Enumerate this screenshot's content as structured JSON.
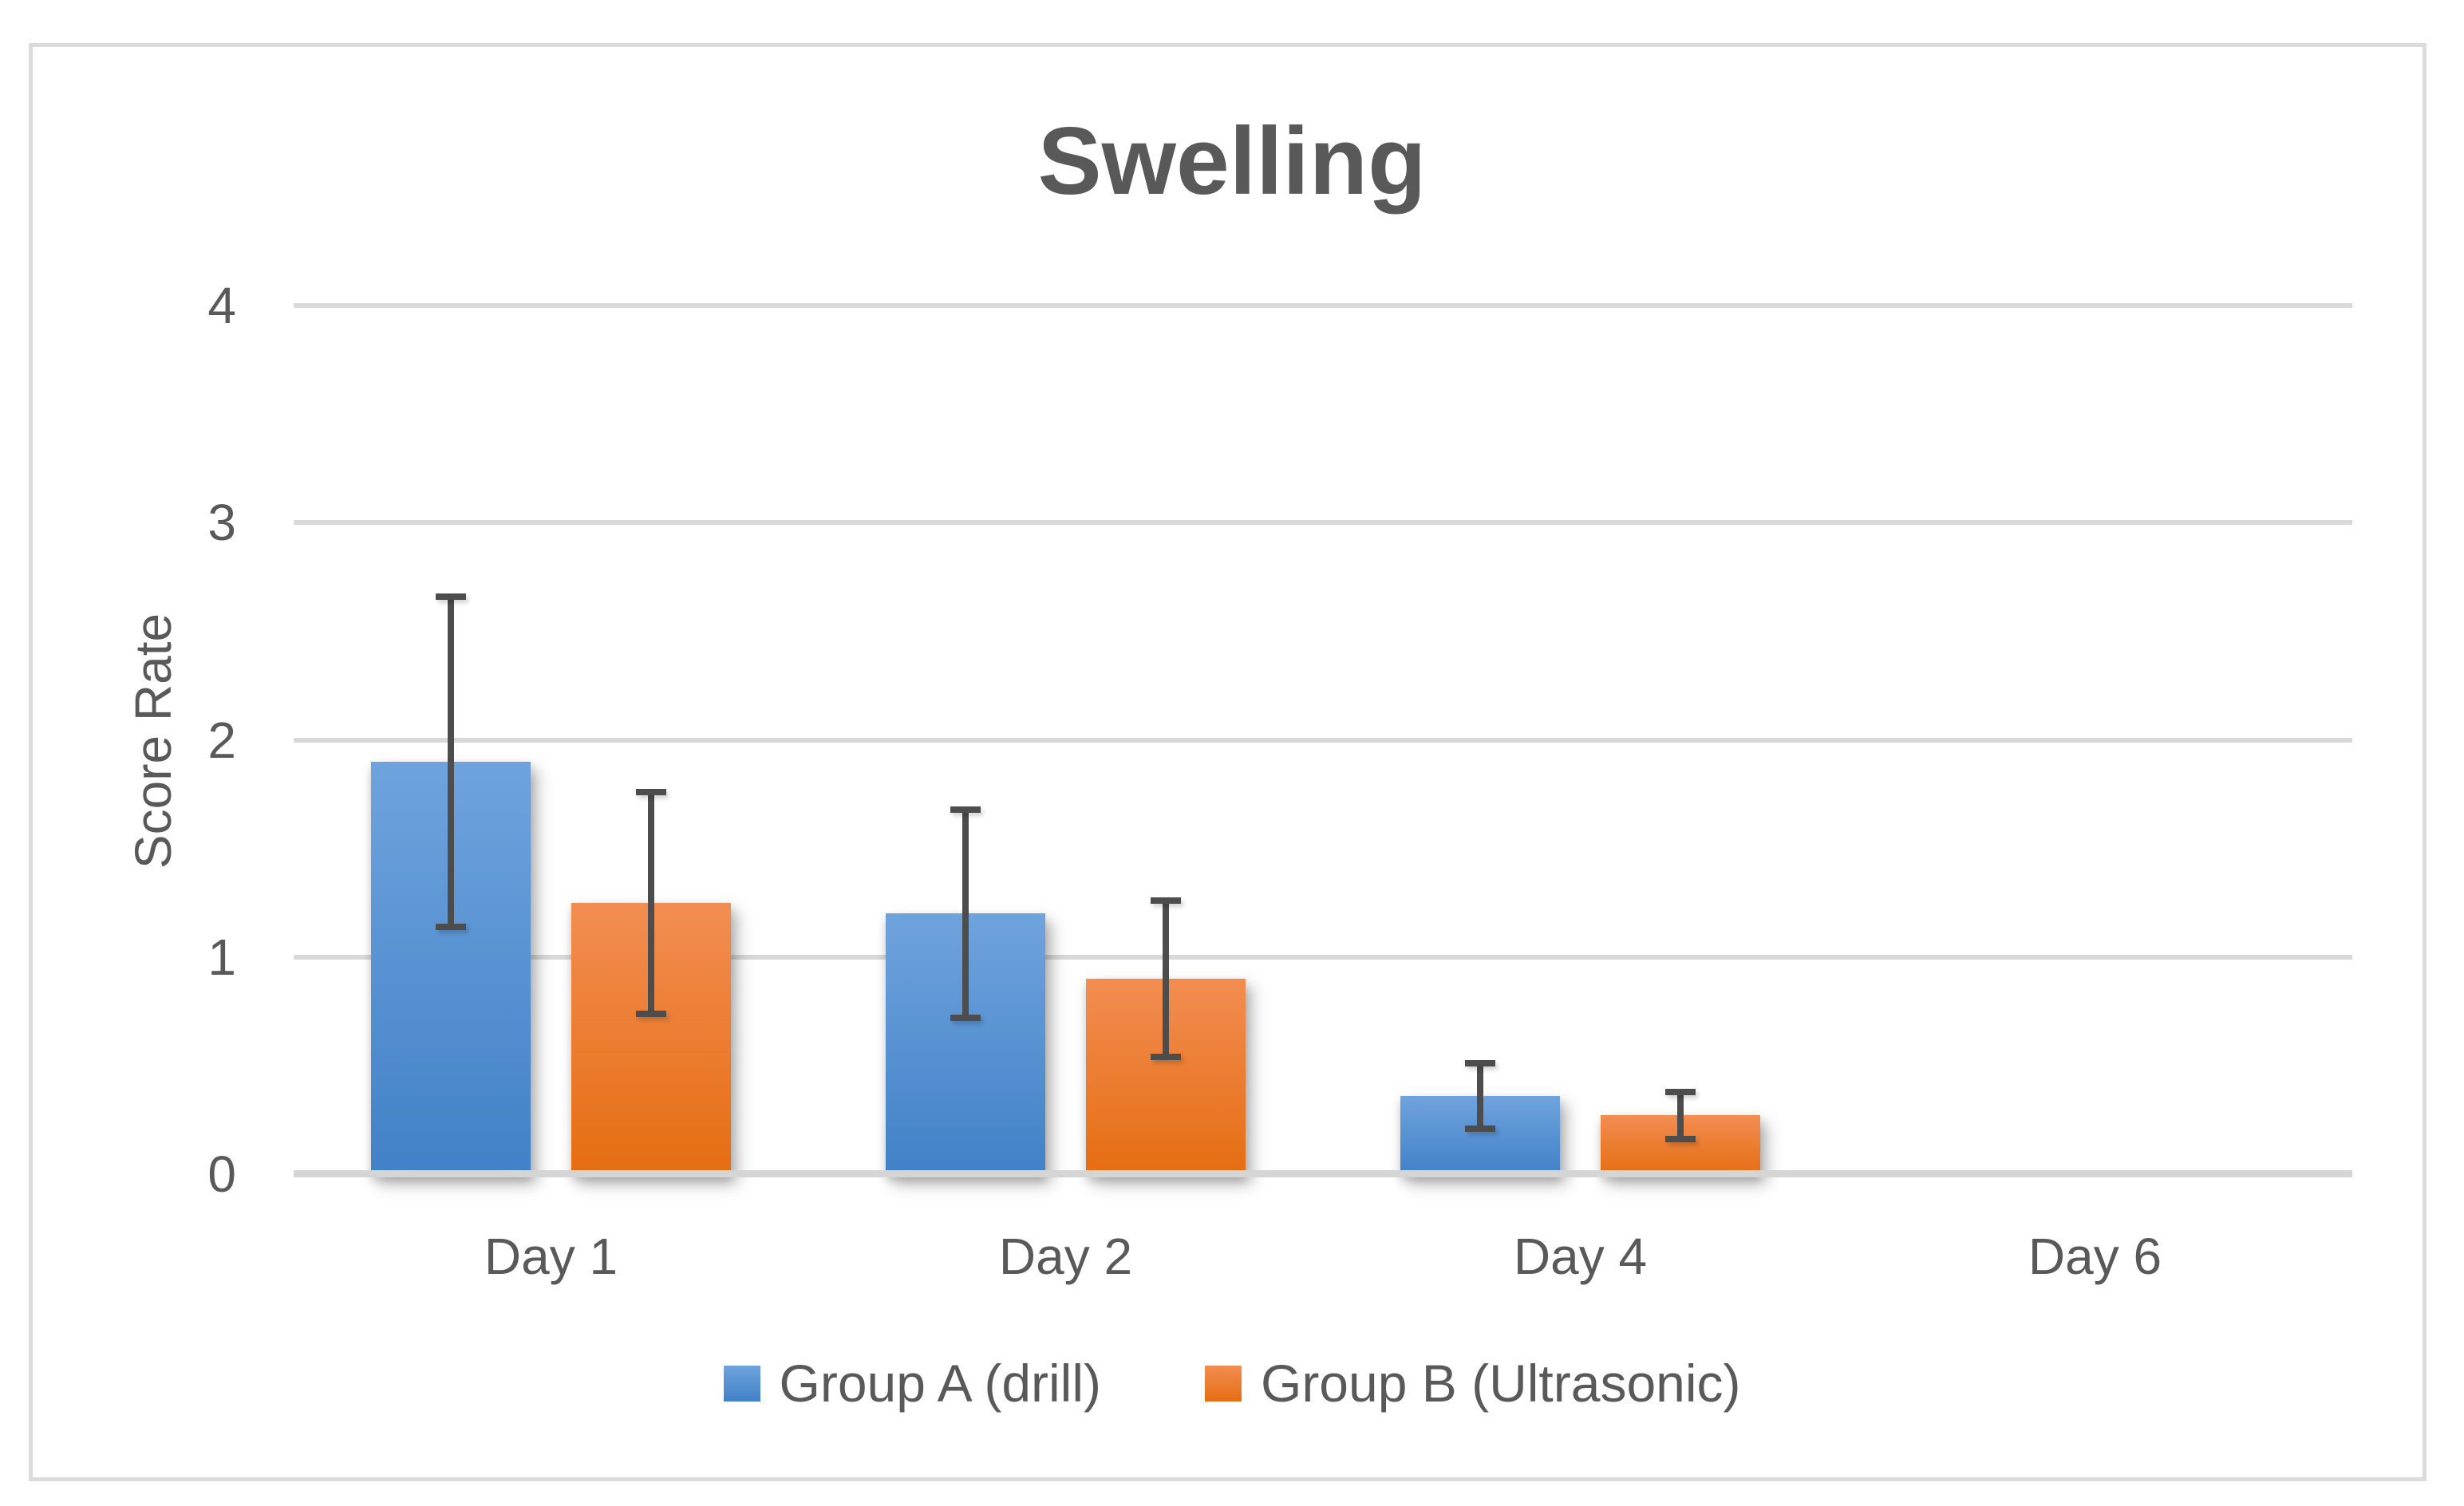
{
  "chart_data": {
    "type": "bar",
    "title": "Swelling",
    "ylabel": "Score Rate",
    "xlabel": "",
    "categories": [
      "Day 1",
      "Day 2",
      "Day 4",
      "Day 6"
    ],
    "series": [
      {
        "name": "Group A (drill)",
        "values": [
          1.9,
          1.2,
          0.36,
          0
        ],
        "errors": [
          0.76,
          0.48,
          0.15,
          0
        ],
        "color_top": "#6FA3DD",
        "color_bottom": "#4181C7"
      },
      {
        "name": "Group B (Ultrasonic)",
        "values": [
          1.25,
          0.9,
          0.27,
          0
        ],
        "errors": [
          0.51,
          0.36,
          0.11,
          0
        ],
        "color_top": "#F28D52",
        "color_bottom": "#E56D11"
      }
    ],
    "ylim": [
      0,
      4
    ],
    "yticks": [
      0,
      1,
      2,
      3,
      4
    ],
    "grid": true,
    "legend_position": "bottom",
    "error_bars": true,
    "colors": {
      "text": "#595959",
      "gridline": "#D9D9D9",
      "axis_line": "#D5D5D5",
      "error_bar": "#4D4D4D",
      "frame_border": "#DBDBDB",
      "background": "#FFFFFF"
    }
  }
}
